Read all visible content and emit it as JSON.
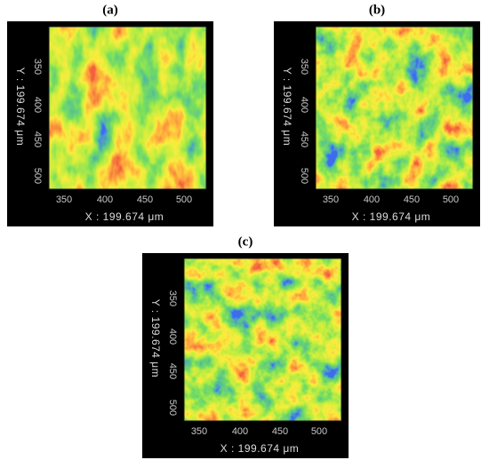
{
  "panels": [
    {
      "label": "(a)",
      "y_label": "Y : 199.674 μm",
      "y_ticks": [
        "350",
        "400",
        "450",
        "500"
      ],
      "x_label": "X : 199.674 μm",
      "x_ticks": [
        "350",
        "400",
        "450",
        "500"
      ]
    },
    {
      "label": "(b)",
      "y_label": "Y : 199.674 μm",
      "y_ticks": [
        "350",
        "400",
        "450",
        "500"
      ],
      "x_label": "X : 199.674 μm",
      "x_ticks": [
        "350",
        "400",
        "450",
        "500"
      ]
    },
    {
      "label": "(c)",
      "y_label": "Y : 199.674 μm",
      "y_ticks": [
        "350",
        "400",
        "450",
        "500"
      ],
      "x_label": "X : 199.674 μm",
      "x_ticks": [
        "350",
        "400",
        "450",
        "500"
      ]
    }
  ]
}
